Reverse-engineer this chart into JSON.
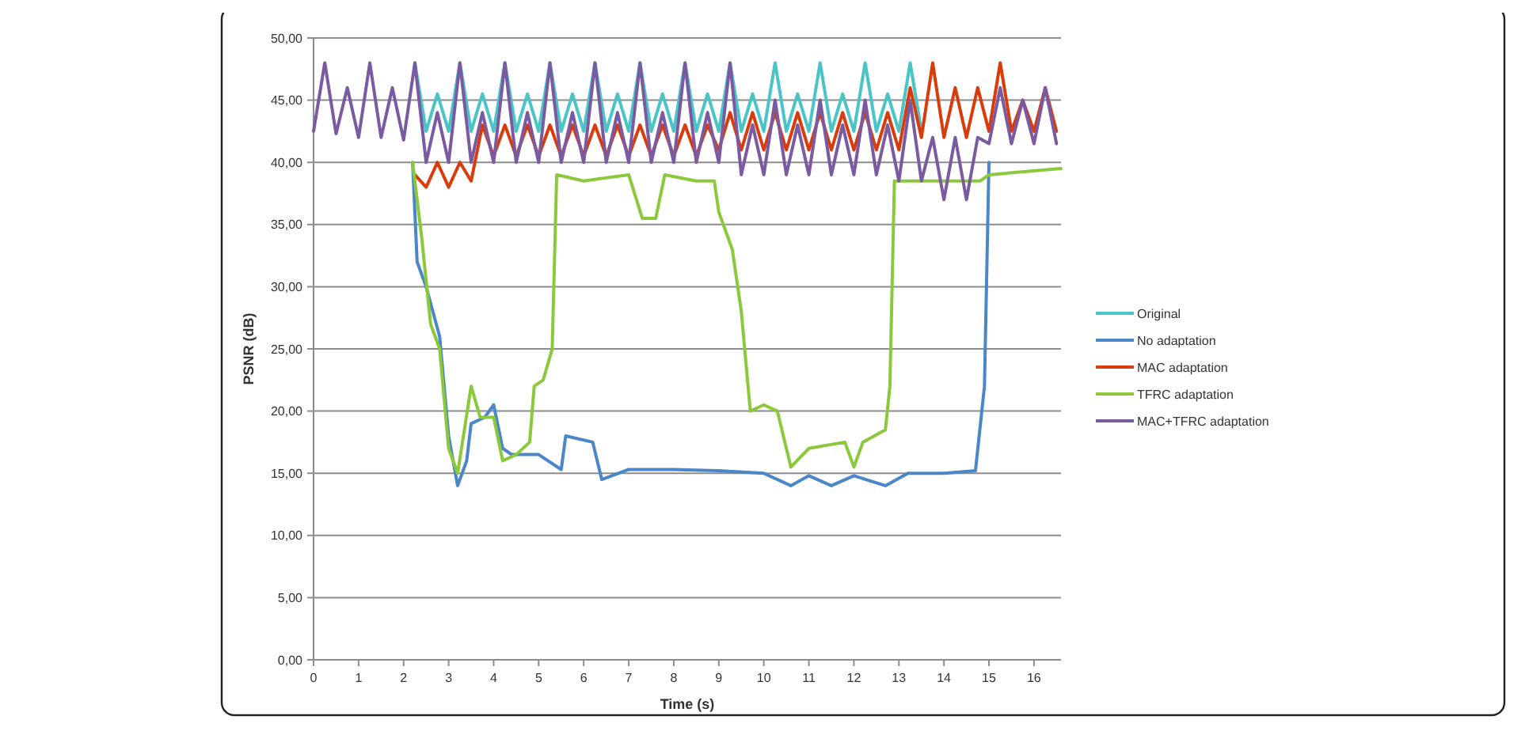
{
  "chart_data": {
    "type": "line",
    "xlabel": "Time (s)",
    "ylabel": "PSNR (dB)",
    "xlim": [
      0,
      16.6
    ],
    "ylim": [
      0,
      50
    ],
    "xticks": [
      0,
      1,
      2,
      3,
      4,
      5,
      6,
      7,
      8,
      9,
      10,
      11,
      12,
      13,
      14,
      15,
      16
    ],
    "yticks": [
      {
        "value": 0,
        "label": "0,00"
      },
      {
        "value": 5,
        "label": "5,00"
      },
      {
        "value": 10,
        "label": "10,00"
      },
      {
        "value": 15,
        "label": "15,00"
      },
      {
        "value": 20,
        "label": "20,00"
      },
      {
        "value": 25,
        "label": "25,00"
      },
      {
        "value": 30,
        "label": "30,00"
      },
      {
        "value": 35,
        "label": "35,00"
      },
      {
        "value": 40,
        "label": "40,00"
      },
      {
        "value": 45,
        "label": "45,00"
      },
      {
        "value": 50,
        "label": "50,00"
      }
    ],
    "grid": "y",
    "legend": "right",
    "marker": "none",
    "line_style": "solid",
    "series": [
      {
        "name": "Original",
        "color": "#4bc4c8",
        "x": [
          2.25,
          2.5,
          2.75,
          3,
          3.25,
          3.5,
          3.75,
          4,
          4.25,
          4.5,
          4.75,
          5,
          5.25,
          5.5,
          5.75,
          6,
          6.25,
          6.5,
          6.75,
          7,
          7.25,
          7.5,
          7.75,
          8,
          8.25,
          8.5,
          8.75,
          9,
          9.25,
          9.5,
          9.75,
          10,
          10.25,
          10.5,
          10.75,
          11,
          11.25,
          11.5,
          11.75,
          12,
          12.25,
          12.5,
          12.75,
          13,
          13.25,
          13.5
        ],
        "values": [
          48,
          42.5,
          45.5,
          42.5,
          48,
          42.5,
          45.5,
          42.5,
          48,
          42.5,
          45.5,
          42.5,
          48,
          42.5,
          45.5,
          42.5,
          48,
          42.5,
          45.5,
          42.5,
          48,
          42.5,
          45.5,
          42.5,
          48,
          42.5,
          45.5,
          42.5,
          48,
          42.5,
          45.5,
          42.5,
          48,
          42.5,
          45.5,
          42.5,
          48,
          42.5,
          45.5,
          42.5,
          48,
          42.5,
          45.5,
          42.5,
          48,
          42.5
        ]
      },
      {
        "name": "No adaptation",
        "color": "#4a86c8",
        "x": [
          2.2,
          2.3,
          2.5,
          2.8,
          3.0,
          3.2,
          3.4,
          3.5,
          3.8,
          4.0,
          4.2,
          4.4,
          5.0,
          5.5,
          5.6,
          6.2,
          6.4,
          7,
          8,
          9,
          10,
          10.6,
          11,
          11.5,
          12,
          12.7,
          13.2,
          14,
          14.7,
          14.9,
          15
        ],
        "values": [
          40,
          32,
          30,
          26,
          18,
          14,
          16,
          19,
          19.5,
          20.5,
          17,
          16.5,
          16.5,
          15.3,
          18,
          17.5,
          14.5,
          15.3,
          15.3,
          15.2,
          15,
          14,
          14.8,
          14,
          14.8,
          14,
          15,
          15,
          15.2,
          22,
          40
        ]
      },
      {
        "name": "MAC adaptation",
        "color": "#d83b0c",
        "x": [
          2.25,
          2.5,
          2.75,
          3,
          3.25,
          3.5,
          3.75,
          4,
          4.25,
          4.5,
          4.75,
          5,
          5.25,
          5.5,
          5.75,
          6,
          6.25,
          6.5,
          6.75,
          7,
          7.25,
          7.5,
          7.75,
          8,
          8.25,
          8.5,
          8.75,
          9,
          9.25,
          9.5,
          9.75,
          10,
          10.25,
          10.5,
          10.75,
          11,
          11.25,
          11.5,
          11.75,
          12,
          12.25,
          12.5,
          12.75,
          13,
          13.25,
          13.5,
          13.75,
          14,
          14.25,
          14.5,
          14.75,
          15,
          15.25,
          15.5,
          15.75,
          16,
          16.25,
          16.5
        ],
        "values": [
          39,
          38,
          40,
          38,
          40,
          38.5,
          43,
          40.5,
          43,
          40.5,
          43,
          40.5,
          43,
          40.5,
          43,
          40.5,
          43,
          40.5,
          43,
          40.5,
          43,
          40.5,
          43,
          40.5,
          43,
          40.5,
          43,
          41,
          44,
          41,
          44,
          41,
          44,
          41,
          44,
          41,
          44,
          41,
          44,
          41,
          44,
          41,
          44,
          41,
          46,
          42,
          48,
          42,
          46,
          42,
          46,
          42.5,
          48,
          42.5,
          45,
          42.5,
          46,
          42.5
        ]
      },
      {
        "name": "TFRC adaptation",
        "color": "#8cc83c",
        "x": [
          2.2,
          2.4,
          2.6,
          2.8,
          3.0,
          3.2,
          3.5,
          3.7,
          4.0,
          4.2,
          4.5,
          4.8,
          4.9,
          5.1,
          5.3,
          5.4,
          6,
          7,
          7.3,
          7.6,
          7.8,
          8.5,
          8.9,
          9.0,
          9.3,
          9.5,
          9.7,
          10,
          10.3,
          10.6,
          11,
          11.8,
          12,
          12.2,
          12.7,
          12.8,
          12.9,
          13.5,
          14.8,
          15,
          16.6
        ],
        "values": [
          40,
          34,
          27,
          25,
          17,
          15,
          22,
          19.5,
          19.5,
          16,
          16.5,
          17.5,
          22,
          22.5,
          25,
          39,
          38.5,
          39,
          35.5,
          35.5,
          39,
          38.5,
          38.5,
          36,
          33,
          28,
          20,
          20.5,
          20,
          15.5,
          17,
          17.5,
          15.5,
          17.5,
          18.5,
          22,
          38.5,
          38.5,
          38.5,
          39,
          39.5
        ]
      },
      {
        "name": "MAC+TFRC adaptation",
        "color": "#7a5aa0",
        "x": [
          0,
          0.25,
          0.5,
          0.75,
          1,
          1.25,
          1.5,
          1.75,
          2,
          2.25,
          2.5,
          2.75,
          3,
          3.25,
          3.5,
          3.75,
          4,
          4.25,
          4.5,
          4.75,
          5,
          5.25,
          5.5,
          5.75,
          6,
          6.25,
          6.5,
          6.75,
          7,
          7.25,
          7.5,
          7.75,
          8,
          8.25,
          8.5,
          8.75,
          9,
          9.25,
          9.5,
          9.75,
          10,
          10.25,
          10.5,
          10.75,
          11,
          11.25,
          11.5,
          11.75,
          12,
          12.25,
          12.5,
          12.75,
          13,
          13.25,
          13.5,
          13.75,
          14,
          14.25,
          14.5,
          14.75,
          15,
          15.25,
          15.5,
          15.75,
          16,
          16.25,
          16.5
        ],
        "values": [
          42.5,
          48,
          42.3,
          46,
          42,
          48,
          42,
          46,
          41.8,
          48,
          40,
          44,
          40,
          48,
          40,
          44,
          40,
          48,
          40,
          44,
          40,
          48,
          40,
          44,
          40,
          48,
          40,
          44,
          40,
          48,
          40,
          44,
          40,
          48,
          40,
          44,
          40,
          48,
          39,
          43,
          39,
          45,
          39,
          43,
          39,
          45,
          39,
          43,
          39,
          45,
          39,
          43,
          38.5,
          45,
          38.5,
          42,
          37,
          42,
          37,
          42,
          41.5,
          46,
          41.5,
          45,
          41.5,
          46,
          41.5
        ]
      }
    ]
  }
}
